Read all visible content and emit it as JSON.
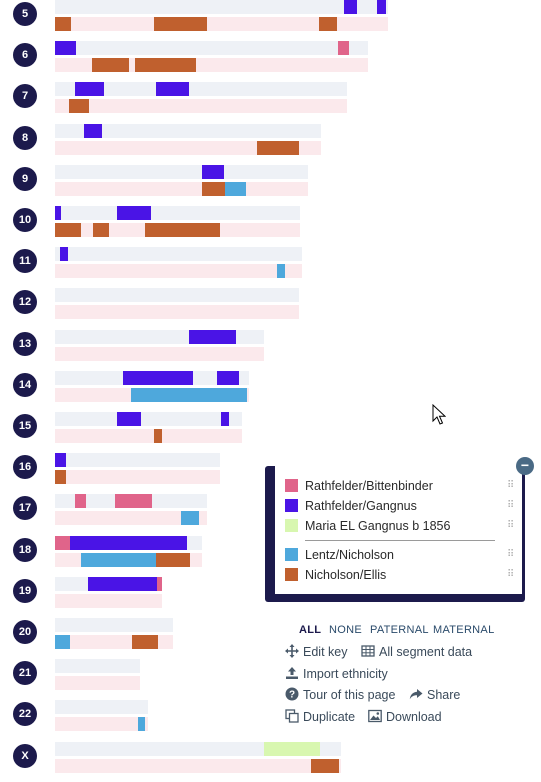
{
  "colors": {
    "pat_bg": "#eef1f6",
    "mat_bg": "#fbe9ec",
    "Rathfelder/Bittenbinder": "#e0648a",
    "Rathfelder/Gangnus": "#4a14e6",
    "Maria EL Gangnus b 1856": "#d8f7b0",
    "Lentz/Nicholson": "#4ea8dc",
    "Nicholson/Ellis": "#c0602e"
  },
  "chromosomes": [
    {
      "label": "5",
      "len": 333,
      "pat": [
        [
          289,
          302,
          "Rathfelder/Gangnus"
        ],
        [
          322,
          331,
          "Rathfelder/Gangnus"
        ]
      ],
      "mat": [
        [
          0,
          16,
          "Nicholson/Ellis"
        ],
        [
          99,
          142,
          "Nicholson/Ellis"
        ],
        [
          142,
          152,
          "Nicholson/Ellis"
        ],
        [
          264,
          282,
          "Nicholson/Ellis"
        ]
      ]
    },
    {
      "label": "6",
      "len": 313,
      "pat": [
        [
          0,
          21,
          "Rathfelder/Gangnus"
        ],
        [
          283,
          294,
          "Rathfelder/Bittenbinder"
        ]
      ],
      "mat": [
        [
          37,
          74,
          "Nicholson/Ellis"
        ],
        [
          80,
          141,
          "Nicholson/Ellis"
        ]
      ]
    },
    {
      "label": "7",
      "len": 292,
      "pat": [
        [
          20,
          49,
          "Rathfelder/Gangnus"
        ],
        [
          101,
          134,
          "Rathfelder/Gangnus"
        ]
      ],
      "mat": [
        [
          14,
          34,
          "Nicholson/Ellis"
        ]
      ]
    },
    {
      "label": "8",
      "len": 266,
      "pat": [
        [
          29,
          47,
          "Rathfelder/Gangnus"
        ]
      ],
      "mat": [
        [
          202,
          244,
          "Nicholson/Ellis"
        ]
      ]
    },
    {
      "label": "9",
      "len": 253,
      "pat": [
        [
          147,
          169,
          "Rathfelder/Gangnus"
        ]
      ],
      "mat": [
        [
          147,
          170,
          "Nicholson/Ellis"
        ],
        [
          170,
          191,
          "Lentz/Nicholson"
        ]
      ]
    },
    {
      "label": "10",
      "len": 245,
      "pat": [
        [
          0,
          6,
          "Rathfelder/Gangnus"
        ],
        [
          62,
          96,
          "Rathfelder/Gangnus"
        ]
      ],
      "mat": [
        [
          0,
          26,
          "Nicholson/Ellis"
        ],
        [
          38,
          54,
          "Nicholson/Ellis"
        ],
        [
          90,
          165,
          "Nicholson/Ellis"
        ]
      ]
    },
    {
      "label": "11",
      "len": 247,
      "pat": [
        [
          5,
          13,
          "Rathfelder/Gangnus"
        ]
      ],
      "mat": [
        [
          222,
          230,
          "Lentz/Nicholson"
        ]
      ]
    },
    {
      "label": "12",
      "len": 244,
      "pat": [],
      "mat": []
    },
    {
      "label": "13",
      "len": 209,
      "pat": [
        [
          134,
          181,
          "Rathfelder/Gangnus"
        ]
      ],
      "mat": []
    },
    {
      "label": "14",
      "len": 194,
      "pat": [
        [
          68,
          120,
          "Rathfelder/Gangnus"
        ],
        [
          120,
          138,
          "Rathfelder/Gangnus"
        ],
        [
          162,
          184,
          "Rathfelder/Gangnus"
        ]
      ],
      "mat": [
        [
          76,
          192,
          "Lentz/Nicholson"
        ]
      ]
    },
    {
      "label": "15",
      "len": 187,
      "pat": [
        [
          62,
          86,
          "Rathfelder/Gangnus"
        ],
        [
          166,
          174,
          "Rathfelder/Gangnus"
        ]
      ],
      "mat": [
        [
          99,
          107,
          "Nicholson/Ellis"
        ]
      ]
    },
    {
      "label": "16",
      "len": 165,
      "pat": [
        [
          0,
          11,
          "Rathfelder/Gangnus"
        ]
      ],
      "mat": [
        [
          0,
          11,
          "Nicholson/Ellis"
        ]
      ]
    },
    {
      "label": "17",
      "len": 152,
      "pat": [
        [
          20,
          31,
          "Rathfelder/Bittenbinder"
        ],
        [
          60,
          97,
          "Rathfelder/Bittenbinder"
        ]
      ],
      "mat": [
        [
          126,
          144,
          "Lentz/Nicholson"
        ]
      ]
    },
    {
      "label": "18",
      "len": 147,
      "pat": [
        [
          0,
          15,
          "Rathfelder/Bittenbinder"
        ],
        [
          15,
          104,
          "Rathfelder/Gangnus"
        ],
        [
          104,
          132,
          "Rathfelder/Gangnus"
        ]
      ],
      "mat": [
        [
          26,
          70,
          "Lentz/Nicholson"
        ],
        [
          70,
          101,
          "Lentz/Nicholson"
        ],
        [
          101,
          135,
          "Nicholson/Ellis"
        ]
      ]
    },
    {
      "label": "19",
      "len": 107,
      "pat": [
        [
          33,
          102,
          "Rathfelder/Gangnus"
        ],
        [
          102,
          107,
          "Rathfelder/Bittenbinder"
        ]
      ],
      "mat": []
    },
    {
      "label": "20",
      "len": 118,
      "pat": [],
      "mat": [
        [
          0,
          15,
          "Lentz/Nicholson"
        ],
        [
          77,
          103,
          "Nicholson/Ellis"
        ]
      ]
    },
    {
      "label": "21",
      "len": 85,
      "pat": [],
      "mat": []
    },
    {
      "label": "22",
      "len": 93,
      "pat": [],
      "mat": [
        [
          83,
          90,
          "Lentz/Nicholson"
        ]
      ]
    },
    {
      "label": "X",
      "len": 286,
      "pat": [
        [
          209,
          265,
          "Maria EL Gangnus b 1856"
        ]
      ],
      "mat": [
        [
          256,
          284,
          "Nicholson/Ellis"
        ]
      ]
    }
  ],
  "legend": {
    "items": [
      {
        "label": "Rathfelder/Bittenbinder",
        "color": "#e0648a"
      },
      {
        "label": "Rathfelder/Gangnus",
        "color": "#4a14e6"
      },
      {
        "label": "Maria EL Gangnus b 1856",
        "color": "#d8f7b0"
      },
      {
        "label": "Lentz/Nicholson",
        "color": "#4ea8dc"
      },
      {
        "label": "Nicholson/Ellis",
        "color": "#c0602e"
      }
    ],
    "collapse_icon": "minus-icon"
  },
  "filters": {
    "all": "ALL",
    "none": "NONE",
    "paternal": "PATERNAL",
    "maternal": "MATERNAL"
  },
  "actions": {
    "edit_key": "Edit key",
    "all_segment_data": "All segment data",
    "import_ethnicity": "Import ethnicity",
    "tour": "Tour of this page",
    "share": "Share",
    "duplicate": "Duplicate",
    "download": "Download"
  }
}
